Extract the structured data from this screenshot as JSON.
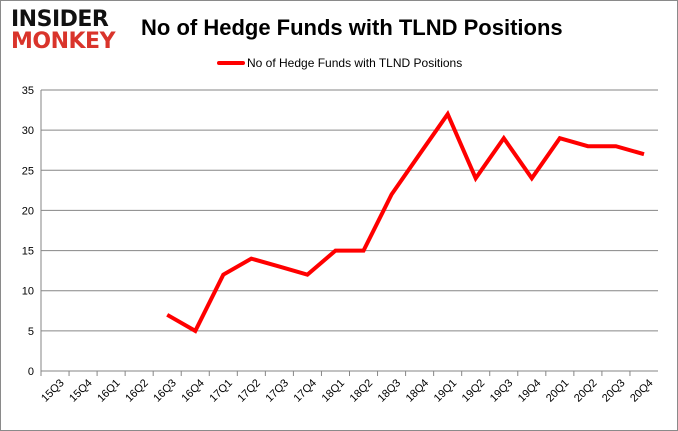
{
  "logo": {
    "line1": "INSIDER",
    "line2": "MONKEY"
  },
  "chart_data": {
    "type": "line",
    "title": "No of Hedge Funds with TLND Positions",
    "xlabel": "",
    "ylabel": "",
    "categories": [
      "15Q3",
      "15Q4",
      "16Q1",
      "16Q2",
      "16Q3",
      "16Q4",
      "17Q1",
      "17Q2",
      "17Q3",
      "17Q4",
      "18Q1",
      "18Q2",
      "18Q3",
      "18Q4",
      "19Q1",
      "19Q2",
      "19Q3",
      "19Q4",
      "20Q1",
      "20Q2",
      "20Q3",
      "20Q4"
    ],
    "series": [
      {
        "name": "No of Hedge Funds with TLND Positions",
        "color": "#ff0000",
        "values": [
          null,
          null,
          null,
          null,
          7,
          5,
          12,
          14,
          13,
          12,
          15,
          15,
          22,
          27,
          32,
          24,
          29,
          24,
          29,
          28,
          28,
          27
        ]
      }
    ],
    "ylim": [
      0,
      35
    ],
    "yticks": [
      0,
      5,
      10,
      15,
      20,
      25,
      30,
      35
    ],
    "grid": true,
    "legend": "top"
  }
}
